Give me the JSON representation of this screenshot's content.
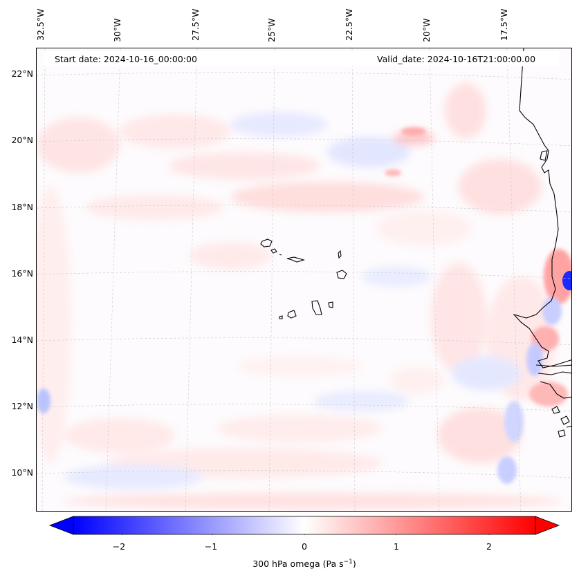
{
  "map": {
    "start_date": "Start date: 2024-10-16_00:00:00",
    "valid_date": "Valid_date: 2024-10-16T21:00:00.00",
    "lon_labels": [
      "32.5°W",
      "30°W",
      "27.5°W",
      "25°W",
      "22.5°W",
      "20°W",
      "17.5°W"
    ],
    "lat_labels": [
      "22°N",
      "20°N",
      "18°N",
      "16°N",
      "14°N",
      "12°N",
      "10°N"
    ],
    "colorbar": {
      "ticks": [
        "−2",
        "−1",
        "0",
        "1",
        "2"
      ],
      "label_prefix": "300 hPa omega (Pa s",
      "label_exp": "−1",
      "label_suffix": ")",
      "min": -2.6,
      "max": 2.6,
      "low_color": "#0000ff",
      "mid_color": "#ffffff",
      "high_color": "#ff0000"
    }
  }
}
